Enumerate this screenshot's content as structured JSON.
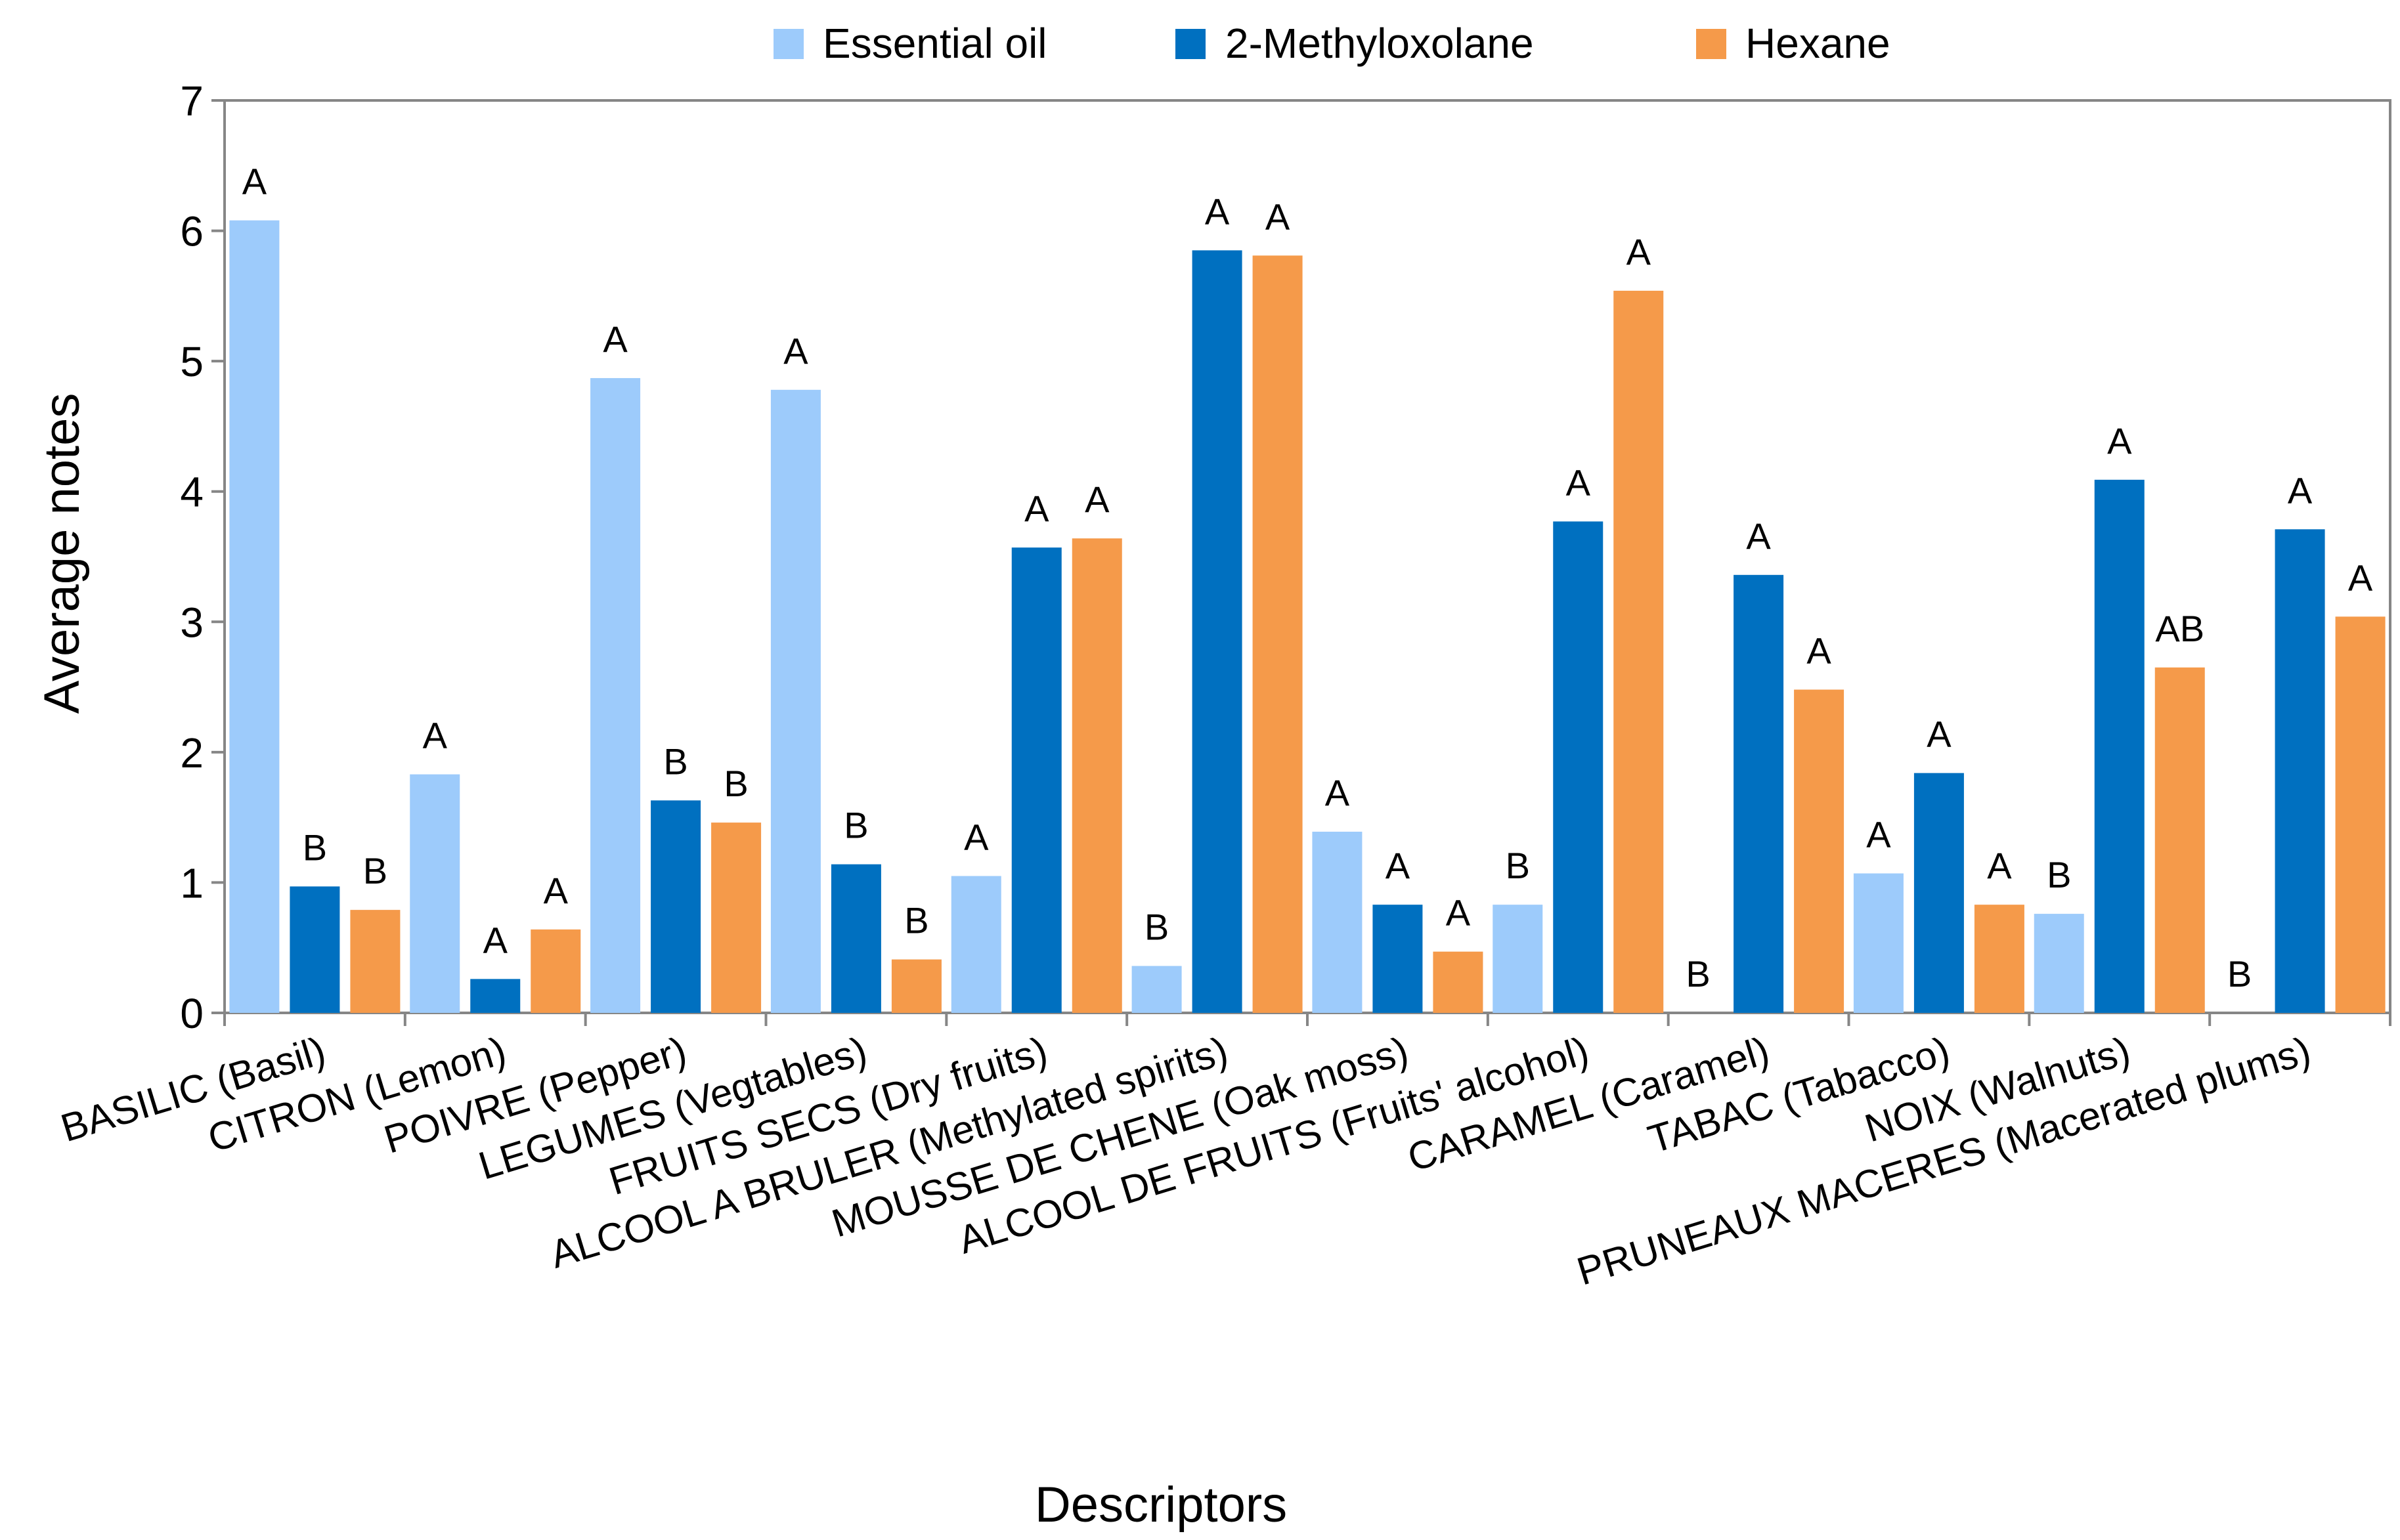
{
  "chart_data": {
    "type": "bar",
    "title": "",
    "xlabel": "Descriptors",
    "ylabel": "Average notes",
    "ylim": [
      0,
      7
    ],
    "yticks": [
      0,
      1,
      2,
      3,
      4,
      5,
      6,
      7
    ],
    "grid": false,
    "legend_position": "top",
    "categories": [
      "BASILIC (Basil)",
      "CITRON (Lemon)",
      "POIVRE (Pepper)",
      "LEGUMES (Vegtables)",
      "FRUITS SECS (Dry fruits)",
      "ALCOOL A BRULER (Methylated spirits)",
      "MOUSSE DE CHENE (Oak moss)",
      "ALCOOL DE FRUITS (Fruits' alcohol)",
      "CARAMEL (Caramel)",
      "TABAC (Tabacco)",
      "NOIX (Walnuts)",
      "PRUNEAUX MACERES (Macerated plums)"
    ],
    "series": [
      {
        "name": "Essential oil",
        "color": "#9dcbfb",
        "values": [
          6.08,
          1.83,
          4.87,
          4.78,
          1.05,
          0.36,
          1.39,
          0.83,
          0.0,
          1.07,
          0.76,
          0.0
        ],
        "labels": [
          "A",
          "A",
          "A",
          "A",
          "A",
          "B",
          "A",
          "B",
          "B",
          "A",
          "B",
          "B"
        ]
      },
      {
        "name": "2-Methyloxolane",
        "color": "#0070c0",
        "values": [
          0.97,
          0.26,
          1.63,
          1.14,
          3.57,
          5.85,
          0.83,
          3.77,
          3.36,
          1.84,
          4.09,
          3.71
        ],
        "labels": [
          "B",
          "A",
          "B",
          "B",
          "A",
          "A",
          "A",
          "A",
          "A",
          "A",
          "A",
          "A"
        ]
      },
      {
        "name": "Hexane",
        "color": "#f59a4a",
        "values": [
          0.79,
          0.64,
          1.46,
          0.41,
          3.64,
          5.81,
          0.47,
          5.54,
          2.48,
          0.83,
          2.65,
          3.04
        ],
        "labels": [
          "B",
          "A",
          "B",
          "B",
          "A",
          "A",
          "A",
          "A",
          "A",
          "A",
          "AB",
          "A"
        ]
      }
    ]
  }
}
